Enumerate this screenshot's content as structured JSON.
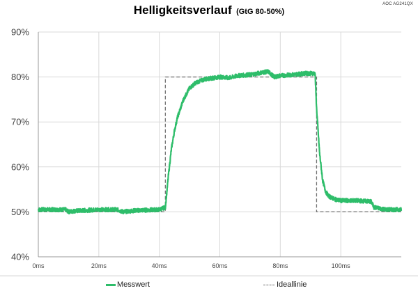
{
  "title": "Helligkeitsverlauf",
  "subtitle": "(GtG 80-50%)",
  "watermark": "AOC AG241QX",
  "legend": {
    "measured": "Messwert",
    "ideal": "Ideallinie"
  },
  "colors": {
    "measured": "#2ebd6a",
    "ideal": "#707070",
    "grid": "#d9d9d9"
  },
  "chart_data": {
    "type": "line",
    "title": "Helligkeitsverlauf",
    "subtitle": "(GtG 80-50%)",
    "xlim": [
      0,
      120
    ],
    "ylim": [
      40,
      90
    ],
    "x_ticks": [
      0,
      20,
      40,
      60,
      80,
      100
    ],
    "x_tick_labels": [
      "0ms",
      "20ms",
      "40ms",
      "60ms",
      "80ms",
      "100ms"
    ],
    "y_ticks": [
      40,
      50,
      60,
      70,
      80,
      90
    ],
    "y_tick_labels": [
      "40%",
      "50%",
      "60%",
      "70%",
      "80%",
      "90%"
    ],
    "grid": true,
    "legend_position": "bottom",
    "series": [
      {
        "name": "Messwert",
        "style": "solid",
        "x": [
          0,
          9,
          10,
          12,
          20,
          26,
          28,
          32,
          40,
          42,
          43,
          44,
          45,
          46,
          48,
          50,
          52,
          55,
          60,
          63,
          66,
          70,
          74,
          76,
          78,
          80,
          84,
          88,
          91.5,
          92,
          93,
          94,
          95,
          96,
          98,
          100,
          105,
          110,
          111,
          115,
          120
        ],
        "y": [
          50.5,
          50.5,
          50.0,
          50.2,
          50.5,
          50.5,
          50.0,
          50.3,
          50.5,
          51.0,
          58.0,
          64.0,
          68.0,
          71.0,
          75.0,
          77.5,
          78.7,
          79.5,
          80.0,
          79.8,
          80.3,
          80.5,
          81.0,
          81.2,
          80.0,
          80.3,
          80.5,
          80.8,
          80.8,
          73.0,
          63.0,
          57.0,
          54.5,
          53.5,
          52.8,
          52.5,
          52.5,
          52.3,
          51.0,
          50.5,
          50.5
        ]
      },
      {
        "name": "Ideallinie",
        "style": "dashed",
        "x": [
          0,
          42,
          42,
          92,
          92,
          120
        ],
        "y": [
          50,
          50,
          80,
          80,
          50,
          50
        ]
      }
    ]
  }
}
